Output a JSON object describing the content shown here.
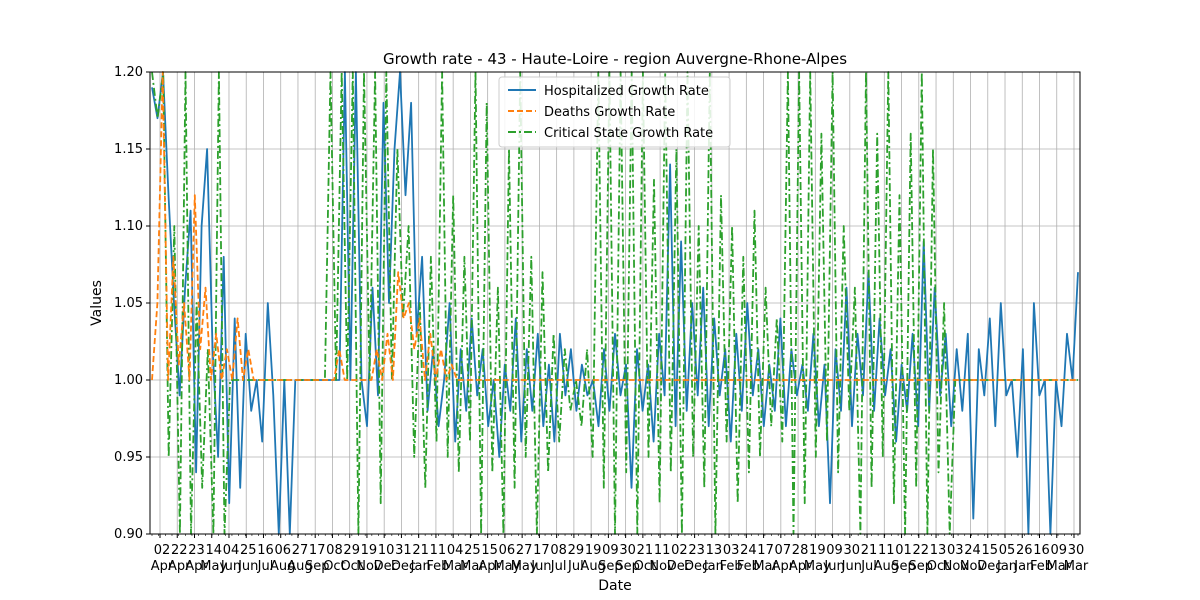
{
  "chart_data": {
    "type": "line",
    "title": "Growth rate - 43 - Haute-Loire - region Auvergne-Rhone-Alpes",
    "xlabel": "Date",
    "ylabel": "Values",
    "ylim": [
      0.9,
      1.2
    ],
    "yticks": [
      "0.90",
      "0.95",
      "1.00",
      "1.05",
      "1.10",
      "1.15",
      "1.20"
    ],
    "grid": true,
    "legend_position": "upper center",
    "x_tick_labels": [
      {
        "day": "02",
        "month": "Apr"
      },
      {
        "day": "22",
        "month": "Apr"
      },
      {
        "day": "23",
        "month": "Apr"
      },
      {
        "day": "14",
        "month": "May"
      },
      {
        "day": "04",
        "month": "Jun"
      },
      {
        "day": "25",
        "month": "Jun"
      },
      {
        "day": "16",
        "month": "Jul"
      },
      {
        "day": "06",
        "month": "Aug"
      },
      {
        "day": "27",
        "month": "Aug"
      },
      {
        "day": "17",
        "month": "Sep"
      },
      {
        "day": "08",
        "month": "Oct"
      },
      {
        "day": "29",
        "month": "Oct"
      },
      {
        "day": "19",
        "month": "Nov"
      },
      {
        "day": "10",
        "month": "Dec"
      },
      {
        "day": "31",
        "month": "Dec"
      },
      {
        "day": "21",
        "month": "Jan"
      },
      {
        "day": "11",
        "month": "Feb"
      },
      {
        "day": "04",
        "month": "Mar"
      },
      {
        "day": "25",
        "month": "Mar"
      },
      {
        "day": "15",
        "month": "Apr"
      },
      {
        "day": "06",
        "month": "May"
      },
      {
        "day": "27",
        "month": "May"
      },
      {
        "day": "17",
        "month": "Jun"
      },
      {
        "day": "08",
        "month": "Jul"
      },
      {
        "day": "29",
        "month": "Jul"
      },
      {
        "day": "19",
        "month": "Aug"
      },
      {
        "day": "09",
        "month": "Sep"
      },
      {
        "day": "30",
        "month": "Sep"
      },
      {
        "day": "21",
        "month": "Oct"
      },
      {
        "day": "11",
        "month": "Nov"
      },
      {
        "day": "02",
        "month": "Dec"
      },
      {
        "day": "23",
        "month": "Dec"
      },
      {
        "day": "13",
        "month": "Jan"
      },
      {
        "day": "03",
        "month": "Feb"
      },
      {
        "day": "24",
        "month": "Feb"
      },
      {
        "day": "17",
        "month": "Mar"
      },
      {
        "day": "07",
        "month": "Apr"
      },
      {
        "day": "28",
        "month": "Apr"
      },
      {
        "day": "19",
        "month": "May"
      },
      {
        "day": "09",
        "month": "Jun"
      },
      {
        "day": "30",
        "month": "Jun"
      },
      {
        "day": "21",
        "month": "Jul"
      },
      {
        "day": "11",
        "month": "Aug"
      },
      {
        "day": "01",
        "month": "Sep"
      },
      {
        "day": "22",
        "month": "Sep"
      },
      {
        "day": "13",
        "month": "Oct"
      },
      {
        "day": "03",
        "month": "Nov"
      },
      {
        "day": "24",
        "month": "Nov"
      },
      {
        "day": "15",
        "month": "Dec"
      },
      {
        "day": "05",
        "month": "Jan"
      },
      {
        "day": "26",
        "month": "Jan"
      },
      {
        "day": "16",
        "month": "Feb"
      },
      {
        "day": "09",
        "month": "Mar"
      },
      {
        "day": "30",
        "month": "Mar"
      }
    ],
    "series": [
      {
        "name": "Hospitalized Growth Rate",
        "color": "#1f77b4",
        "dash": "solid",
        "values": [
          1.19,
          1.17,
          1.2,
          1.12,
          1.05,
          0.99,
          1.06,
          1.11,
          0.94,
          1.1,
          1.15,
          1.02,
          0.95,
          1.08,
          0.92,
          1.04,
          0.93,
          1.03,
          0.98,
          1.0,
          0.96,
          1.05,
          0.99,
          0.9,
          1.0,
          0.9,
          1.0,
          1.0,
          1.0,
          1.0,
          1.0,
          1.0,
          1.0,
          1.0,
          1.0,
          1.2,
          1.0,
          1.2,
          1.0,
          0.97,
          1.06,
          0.99,
          1.18,
          1.05,
          1.15,
          1.2,
          1.12,
          1.18,
          1.03,
          1.08,
          0.98,
          1.02,
          0.97,
          1.0,
          1.05,
          0.96,
          1.02,
          0.98,
          1.04,
          0.99,
          1.02,
          0.97,
          1.0,
          0.95,
          1.01,
          0.98,
          1.04,
          0.96,
          1.02,
          0.98,
          1.03,
          0.97,
          1.01,
          0.96,
          1.03,
          0.99,
          1.02,
          0.98,
          1.01,
          0.99,
          1.0,
          0.97,
          1.02,
          0.98,
          1.03,
          0.99,
          1.01,
          0.93,
          1.02,
          0.98,
          1.01,
          0.96,
          1.03,
          0.99,
          1.14,
          0.97,
          1.09,
          0.98,
          1.05,
          0.99,
          1.06,
          0.97,
          1.04,
          0.99,
          1.02,
          0.96,
          1.03,
          0.98,
          1.05,
          0.99,
          1.02,
          0.97,
          1.01,
          0.98,
          1.04,
          0.97,
          1.02,
          0.99,
          1.01,
          0.98,
          1.03,
          0.97,
          1.01,
          0.92,
          1.02,
          0.98,
          1.06,
          0.97,
          1.03,
          0.99,
          1.07,
          0.98,
          1.04,
          0.99,
          1.02,
          0.96,
          1.01,
          0.98,
          1.03,
          0.97,
          1.09,
          0.98,
          1.06,
          0.99,
          1.03,
          0.97,
          1.02,
          0.98,
          1.03,
          0.91,
          1.02,
          0.99,
          1.04,
          0.97,
          1.05,
          0.99,
          1.0,
          0.95,
          1.02,
          0.9,
          1.05,
          0.99,
          1.0,
          0.9,
          1.0,
          0.97,
          1.03,
          1.0,
          1.07
        ]
      },
      {
        "name": "Deaths Growth Rate",
        "color": "#ff7f0e",
        "dash": "dashed",
        "values": [
          1.0,
          1.05,
          1.2,
          1.0,
          1.08,
          1.01,
          1.05,
          1.0,
          1.12,
          1.02,
          1.06,
          1.0,
          1.03,
          1.0,
          1.02,
          1.0,
          1.04,
          1.0,
          1.02,
          1.0,
          1.0,
          1.0,
          1.0,
          1.0,
          1.0,
          1.0,
          1.0,
          1.0,
          1.0,
          1.0,
          1.0,
          1.0,
          1.0,
          1.0,
          1.0,
          1.02,
          1.0,
          1.0,
          1.0,
          1.0,
          1.0,
          1.0,
          1.02,
          1.0,
          1.03,
          1.0,
          1.07,
          1.04,
          1.05,
          1.02,
          1.04,
          1.0,
          1.03,
          1.0,
          1.02,
          1.0,
          1.01,
          1.0,
          1.0,
          1.0,
          1.0,
          1.0,
          1.0,
          1.0,
          1.0,
          1.0,
          1.0,
          1.0,
          1.0,
          1.0,
          1.0,
          1.0,
          1.0,
          1.0,
          1.0,
          1.0,
          1.0,
          1.0,
          1.0,
          1.0,
          1.0,
          1.0,
          1.0,
          1.0,
          1.0,
          1.0,
          1.0,
          1.0,
          1.0,
          1.0,
          1.0,
          1.0,
          1.0,
          1.0,
          1.0,
          1.0,
          1.0,
          1.0,
          1.0,
          1.0,
          1.0,
          1.0,
          1.0,
          1.0,
          1.0,
          1.0,
          1.0,
          1.0,
          1.0,
          1.0,
          1.0,
          1.0,
          1.0,
          1.0,
          1.0,
          1.0,
          1.0,
          1.0,
          1.0,
          1.0,
          1.0,
          1.0,
          1.0,
          1.0,
          1.0,
          1.0,
          1.0,
          1.0,
          1.0,
          1.0,
          1.0,
          1.0,
          1.0,
          1.0,
          1.0,
          1.0,
          1.0,
          1.0,
          1.0,
          1.0,
          1.0,
          1.0,
          1.0,
          1.0,
          1.0,
          1.0,
          1.0,
          1.0,
          1.0,
          1.0,
          1.0,
          1.0,
          1.0,
          1.0,
          1.0,
          1.0,
          1.0,
          1.0,
          1.0,
          1.0,
          1.0,
          1.0,
          1.0,
          1.0,
          1.0,
          1.0,
          1.0,
          1.0,
          1.0,
          1.0,
          1.0,
          1.0,
          1.0,
          1.0
        ]
      },
      {
        "name": "Critical State Growth Rate",
        "color": "#2ca02c",
        "dash": "dashdot",
        "values": [
          1.2,
          1.17,
          1.2,
          0.95,
          1.1,
          0.9,
          1.2,
          0.9,
          1.05,
          0.93,
          1.02,
          0.9,
          1.2,
          0.9,
          1.0,
          1.0,
          1.0,
          1.0,
          1.0,
          1.0,
          1.0,
          1.0,
          1.0,
          1.0,
          1.0,
          1.0,
          1.0,
          1.0,
          1.0,
          1.0,
          1.0,
          1.0,
          1.2,
          1.0,
          1.2,
          1.0,
          1.2,
          0.9,
          1.2,
          1.0,
          1.2,
          0.92,
          1.2,
          1.0,
          1.15,
          1.04,
          1.1,
          0.95,
          1.05,
          0.93,
          1.08,
          0.96,
          1.2,
          0.95,
          1.12,
          0.94,
          1.08,
          0.96,
          1.2,
          0.9,
          1.18,
          0.94,
          1.06,
          0.9,
          1.15,
          0.93,
          1.2,
          0.95,
          1.08,
          0.9,
          1.07,
          0.94,
          1.03,
          0.96,
          1.02,
          0.98,
          1.0,
          0.97,
          1.02,
          0.95,
          1.2,
          0.93,
          1.2,
          0.9,
          1.2,
          0.94,
          1.2,
          0.9,
          1.2,
          0.95,
          1.13,
          0.92,
          1.2,
          0.94,
          1.15,
          0.9,
          1.2,
          0.95,
          1.1,
          0.93,
          1.2,
          0.9,
          1.12,
          0.96,
          1.1,
          0.92,
          1.08,
          0.94,
          1.11,
          0.95,
          1.06,
          0.97,
          1.04,
          0.96,
          1.2,
          0.9,
          1.2,
          0.92,
          1.2,
          0.95,
          1.16,
          0.96,
          1.2,
          0.94,
          1.1,
          0.98,
          1.06,
          0.9,
          1.2,
          0.93,
          1.16,
          0.95,
          1.2,
          0.92,
          1.12,
          0.9,
          1.16,
          0.93,
          1.2,
          0.9,
          1.15,
          0.94,
          1.05,
          0.9,
          1.0,
          1.0,
          1.0,
          1.0,
          1.0,
          1.0,
          1.0,
          1.0,
          1.0,
          1.0,
          1.0,
          1.0,
          1.0,
          1.0,
          1.0,
          1.0,
          1.0,
          1.0,
          1.0,
          1.0,
          1.0,
          1.0,
          1.0
        ]
      }
    ]
  }
}
